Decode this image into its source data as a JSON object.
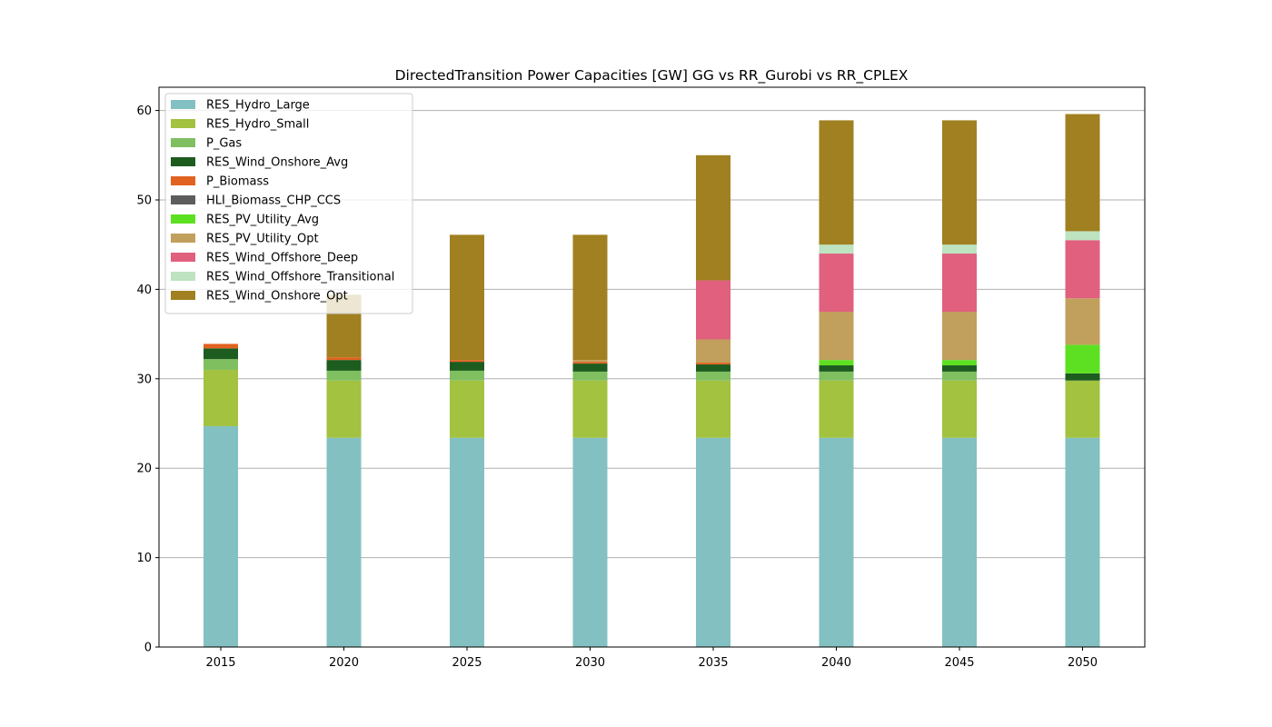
{
  "chart_data": {
    "type": "bar",
    "stacked": true,
    "title": "DirectedTransition Power Capacities [GW] GG vs RR_Gurobi vs RR_CPLEX",
    "xlabel": "",
    "ylabel": "",
    "categories": [
      "2015",
      "2020",
      "2025",
      "2030",
      "2035",
      "2040",
      "2045",
      "2050"
    ],
    "ylim": [
      0,
      62.6
    ],
    "yticks": [
      0,
      10,
      20,
      30,
      40,
      50,
      60
    ],
    "grid": "y",
    "legend_position": "top-left",
    "series": [
      {
        "name": "RES_Hydro_Large",
        "color": "#83c0c1",
        "values": [
          24.7,
          23.4,
          23.4,
          23.4,
          23.4,
          23.4,
          23.4,
          23.4
        ]
      },
      {
        "name": "RES_Hydro_Small",
        "color": "#a2c240",
        "values": [
          6.3,
          6.4,
          6.4,
          6.4,
          6.4,
          6.4,
          6.4,
          6.4
        ]
      },
      {
        "name": "P_Gas",
        "color": "#7fbf60",
        "values": [
          1.2,
          1.1,
          1.1,
          1.0,
          1.0,
          1.0,
          1.0,
          0.0
        ]
      },
      {
        "name": "RES_Wind_Onshore_Avg",
        "color": "#1d5c1f",
        "values": [
          1.2,
          1.2,
          1.0,
          0.9,
          0.8,
          0.7,
          0.7,
          0.8
        ]
      },
      {
        "name": "P_Biomass",
        "color": "#e2621f",
        "values": [
          0.5,
          0.3,
          0.2,
          0.2,
          0.2,
          0.0,
          0.0,
          0.0
        ]
      },
      {
        "name": "HLI_Biomass_CHP_CCS",
        "color": "#5d5d5d",
        "values": [
          0,
          0,
          0,
          0,
          0,
          0,
          0,
          0
        ]
      },
      {
        "name": "RES_PV_Utility_Avg",
        "color": "#5ee022",
        "values": [
          0,
          0,
          0,
          0,
          0,
          0.6,
          0.6,
          3.2
        ]
      },
      {
        "name": "RES_PV_Utility_Opt",
        "color": "#c19f5d",
        "values": [
          0,
          0,
          0,
          0.2,
          2.6,
          5.4,
          5.4,
          5.2
        ]
      },
      {
        "name": "RES_Wind_Offshore_Deep",
        "color": "#e0607e",
        "values": [
          0,
          0,
          0,
          0,
          6.6,
          6.5,
          6.5,
          6.5
        ]
      },
      {
        "name": "RES_Wind_Offshore_Transitional",
        "color": "#bde3c0",
        "values": [
          0,
          0,
          0,
          0,
          0,
          1.0,
          1.0,
          1.0
        ]
      },
      {
        "name": "RES_Wind_Onshore_Opt",
        "color": "#a08020",
        "values": [
          0,
          7.0,
          14.0,
          14.0,
          14.0,
          13.9,
          13.9,
          13.1
        ]
      }
    ]
  }
}
